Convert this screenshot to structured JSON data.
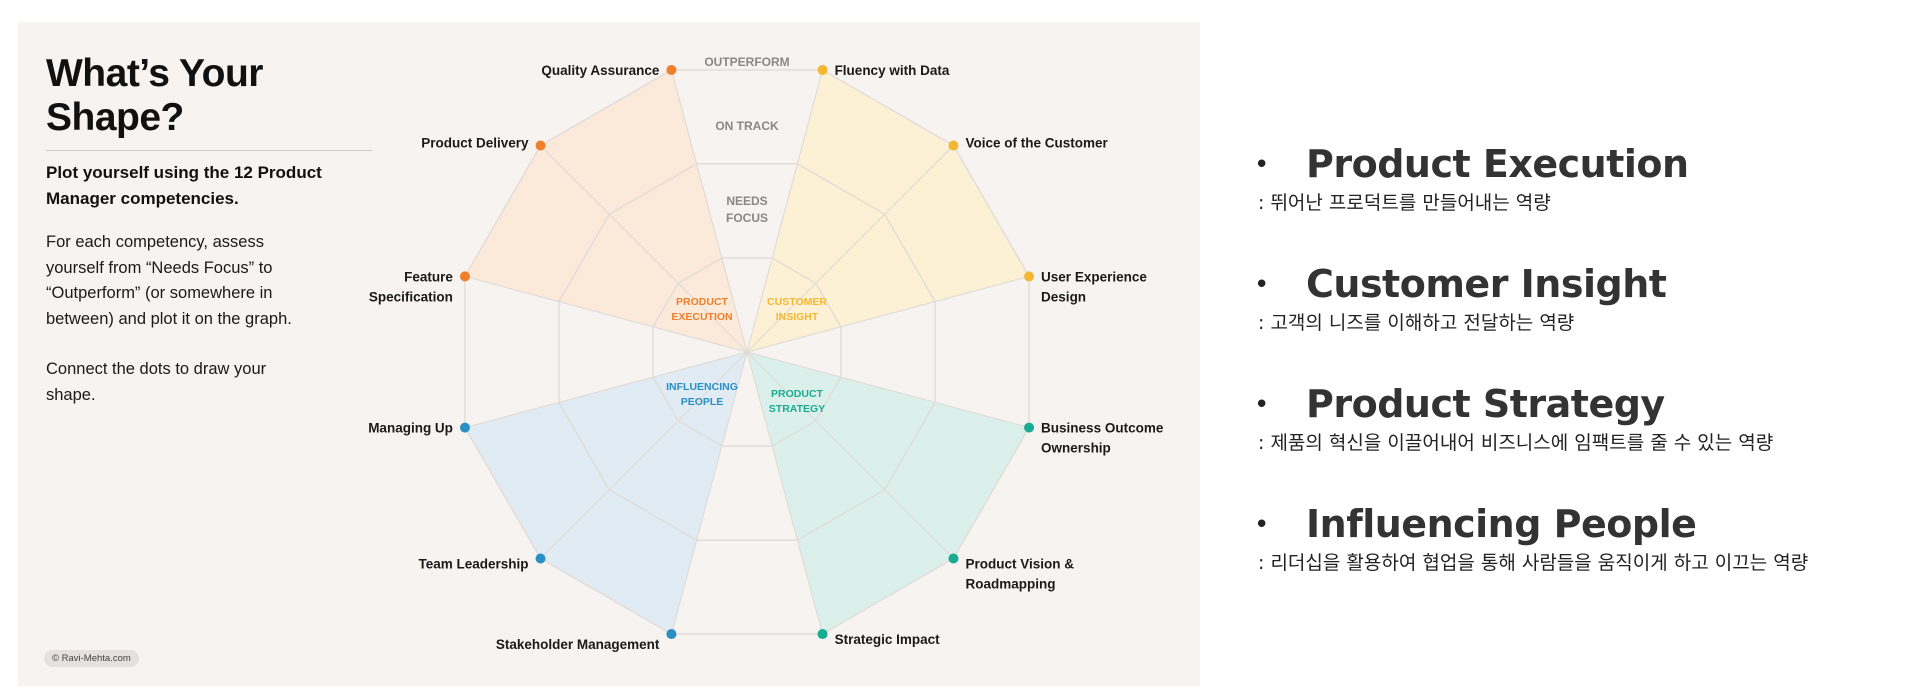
{
  "card": {
    "title": "What’s Your Shape?",
    "subtitle": "Plot yourself using the 12 Product Manager competencies.",
    "paragraphs": [
      "For each competency, assess yourself from “Needs Focus” to “Outperform” (or somewhere in between) and plot it on the graph.",
      "Connect the dots to draw your shape."
    ],
    "copyright": "© Ravi-Mehta.com"
  },
  "radar": {
    "rings": [
      "NEEDS FOCUS",
      "ON TRACK",
      "OUTPERFORM"
    ],
    "groups": [
      {
        "label": "PRODUCT EXECUTION",
        "color": "#f07f2a",
        "fill": "#fce6d5"
      },
      {
        "label": "CUSTOMER INSIGHT",
        "color": "#f4b731",
        "fill": "#fdf0cf"
      },
      {
        "label": "PRODUCT STRATEGY",
        "color": "#1aab93",
        "fill": "#d6efe9"
      },
      {
        "label": "INFLUENCING PEOPLE",
        "color": "#2a8fc4",
        "fill": "#dce9f3"
      }
    ],
    "competencies": [
      {
        "name": "Quality Assurance",
        "group": 0
      },
      {
        "name": "Fluency with Data",
        "group": 1
      },
      {
        "name": "Voice of the Customer",
        "group": 1
      },
      {
        "name": "User Experience Design",
        "group": 1
      },
      {
        "name": "Business Outcome Ownership",
        "group": 2
      },
      {
        "name": "Product Vision & Roadmapping",
        "group": 2
      },
      {
        "name": "Strategic Impact",
        "group": 2
      },
      {
        "name": "Stakeholder Management",
        "group": 3
      },
      {
        "name": "Team Leadership",
        "group": 3
      },
      {
        "name": "Managing Up",
        "group": 3
      },
      {
        "name": "Feature Specification",
        "group": 0
      },
      {
        "name": "Product Delivery",
        "group": 0
      }
    ]
  },
  "categories": [
    {
      "title": "Product Execution",
      "desc": ": 뛰어난 프로덕트를 만들어내는 역량"
    },
    {
      "title": "Customer Insight",
      "desc": ": 고객의 니즈를 이해하고 전달하는 역량"
    },
    {
      "title": "Product Strategy",
      "desc": ": 제품의 혁신을 이끌어내어 비즈니스에 임팩트를 줄 수 있는 역량"
    },
    {
      "title": "Influencing People",
      "desc": ": 리더십을 활용하여 협업을 통해 사람들을 움직이게 하고 이끄는 역량"
    }
  ],
  "bullet": "•"
}
